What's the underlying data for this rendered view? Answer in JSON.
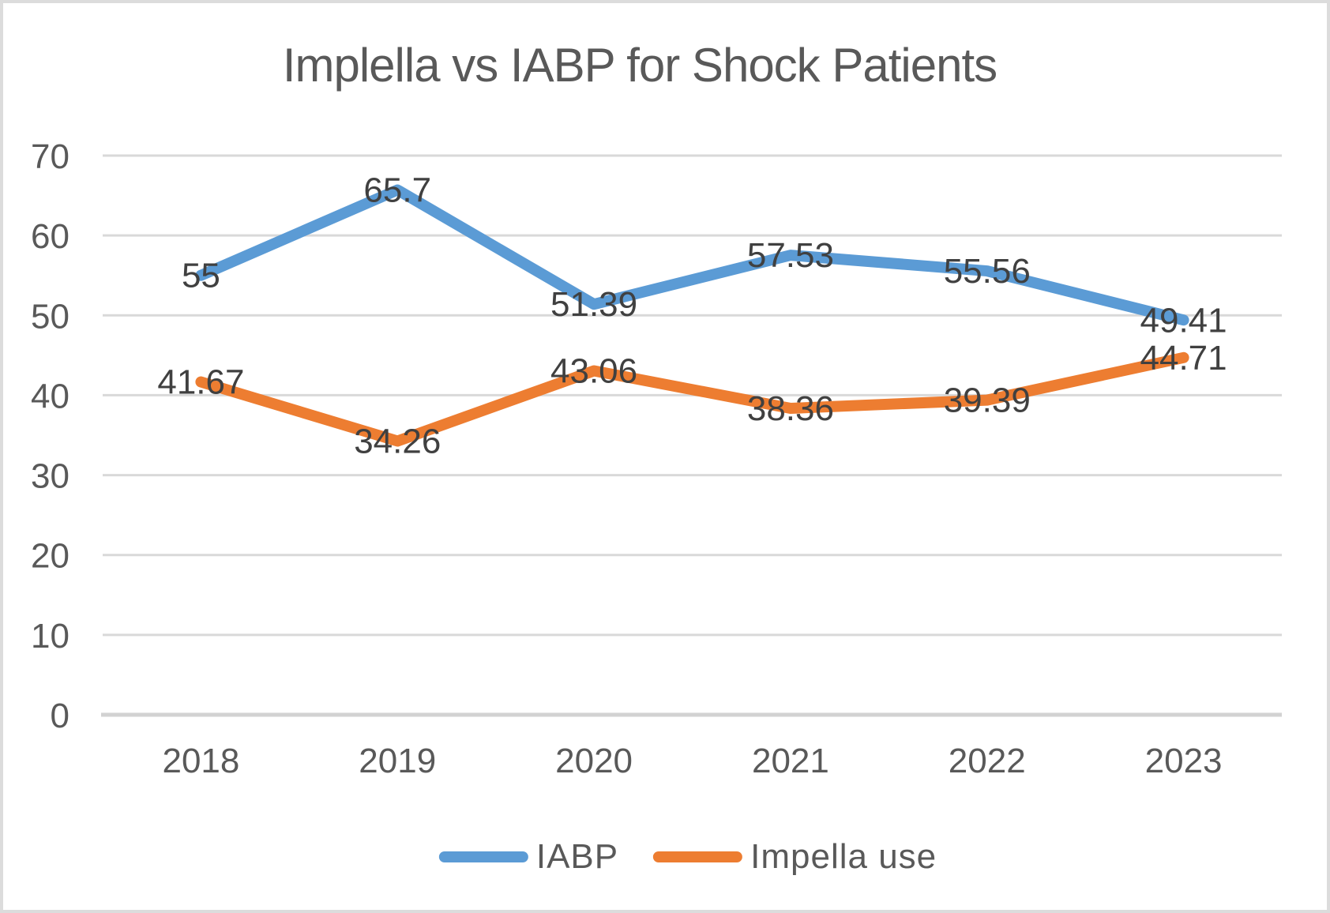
{
  "chart_data": {
    "type": "line",
    "title": "Implella vs IABP for Shock Patients",
    "categories": [
      "2018",
      "2019",
      "2020",
      "2021",
      "2022",
      "2023"
    ],
    "series": [
      {
        "name": "IABP",
        "color": "#5B9BD5",
        "values": [
          55,
          65.7,
          51.39,
          57.53,
          55.56,
          49.41
        ],
        "labels": [
          "55",
          "65.7",
          "51.39",
          "57.53",
          "55.56",
          "49.41"
        ]
      },
      {
        "name": "Impella use",
        "color": "#ED7D31",
        "values": [
          41.67,
          34.26,
          43.06,
          38.36,
          39.39,
          44.71
        ],
        "labels": [
          "41.67",
          "34.26",
          "43.06",
          "38.36",
          "39.39",
          "44.71"
        ]
      }
    ],
    "ylim": [
      0,
      70
    ],
    "ytick_step": 10,
    "yticks": [
      "0",
      "10",
      "20",
      "30",
      "40",
      "50",
      "60",
      "70"
    ],
    "grid": true,
    "legend_position": "bottom",
    "colors": {
      "gridline": "#d9d9d9",
      "axis_line": "#d2d2d2",
      "tick_text": "#595959",
      "data_label_text": "#404040",
      "title_text": "#595959",
      "border": "#dcdcdc"
    }
  }
}
